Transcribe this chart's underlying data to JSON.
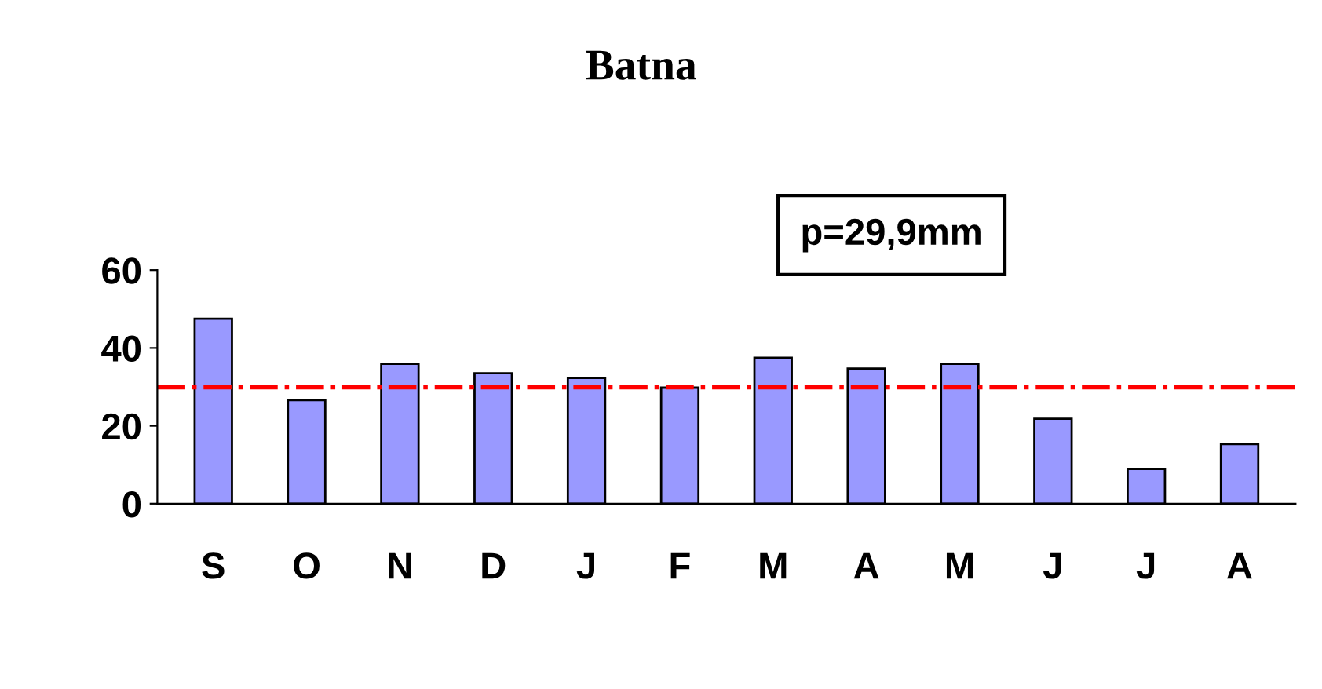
{
  "chart_data": {
    "type": "bar",
    "title": "Batna",
    "categories": [
      "S",
      "O",
      "N",
      "D",
      "J",
      "F",
      "M",
      "A",
      "M",
      "J",
      "J",
      "A"
    ],
    "values": [
      47.5,
      26.6,
      35.9,
      33.5,
      32.3,
      29.8,
      37.5,
      34.7,
      35.9,
      21.8,
      8.9,
      15.3
    ],
    "color": "#9999ff",
    "ylim": [
      0,
      60
    ],
    "yticks": [
      0,
      20,
      40,
      60
    ],
    "grid": false,
    "legend": false,
    "annotations": [
      "p=29,9mm"
    ],
    "ref_lines": [
      {
        "axis": "y",
        "value": 29.9,
        "color": "#ff0000",
        "line_style": "dashdot"
      }
    ]
  }
}
